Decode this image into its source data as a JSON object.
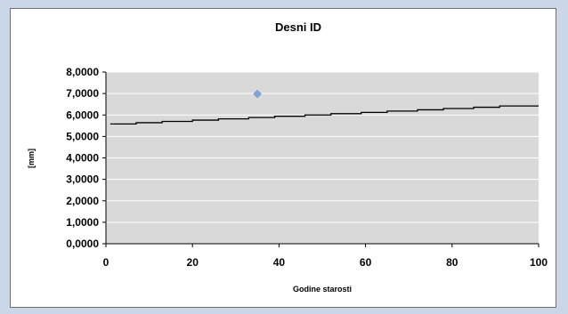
{
  "chart_data": {
    "type": "line",
    "title": "Desni ID",
    "xlabel": "Godine starosti",
    "ylabel": "[mm]",
    "xlim": [
      0,
      100
    ],
    "ylim": [
      0,
      8
    ],
    "x_ticks": [
      "0",
      "20",
      "40",
      "60",
      "80",
      "100"
    ],
    "y_ticks": [
      "0,0000",
      "1,0000",
      "2,0000",
      "3,0000",
      "4,0000",
      "5,0000",
      "6,0000",
      "7,0000",
      "8,0000"
    ],
    "grid": true,
    "legend": "none",
    "plot_background": "#d9d9d9",
    "series": [
      {
        "type": "line",
        "color": "#000000",
        "x": [
          1,
          7,
          7,
          13,
          13,
          20,
          20,
          26,
          26,
          33,
          33,
          39,
          39,
          46,
          46,
          52,
          52,
          59,
          59,
          65,
          65,
          72,
          72,
          78,
          78,
          85,
          85,
          91,
          91,
          100
        ],
        "y": [
          5.58,
          5.58,
          5.64,
          5.64,
          5.7,
          5.7,
          5.76,
          5.76,
          5.82,
          5.82,
          5.88,
          5.88,
          5.94,
          5.94,
          6.0,
          6.0,
          6.06,
          6.06,
          6.12,
          6.12,
          6.18,
          6.18,
          6.24,
          6.24,
          6.3,
          6.3,
          6.36,
          6.36,
          6.42,
          6.42
        ]
      },
      {
        "type": "scatter",
        "marker": "diamond",
        "color": "#7fa2d6",
        "x": [
          35
        ],
        "y": [
          6.98
        ]
      }
    ]
  }
}
